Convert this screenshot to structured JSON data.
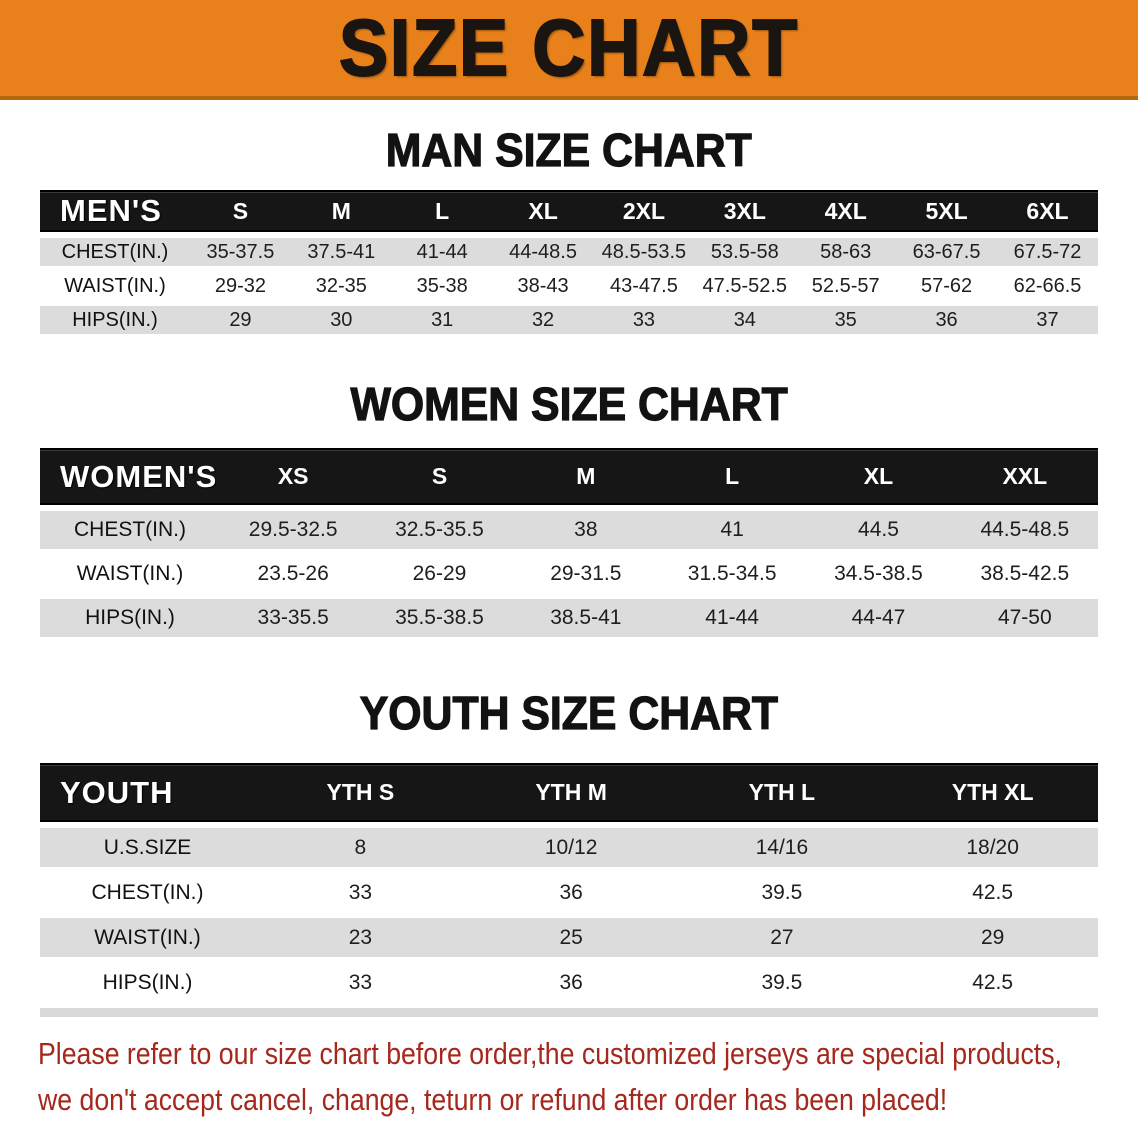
{
  "banner": {
    "title": "SIZE CHART"
  },
  "colors": {
    "banner_bg": "#E8811B",
    "banner_text": "#1A1510",
    "header_bar": "#161616",
    "header_text": "#FFFFFF",
    "row_stripe": "#DCDCDC",
    "row_text": "#1E1E1E",
    "notice_red": "#A5281D"
  },
  "sections": [
    {
      "heading": "MAN SIZE CHART",
      "table": {
        "header_label": "MEN'S",
        "columns": [
          "S",
          "M",
          "L",
          "XL",
          "2XL",
          "3XL",
          "4XL",
          "5XL",
          "6XL"
        ],
        "rows": [
          {
            "label": "CHEST(IN.)",
            "values": [
              "35-37.5",
              "37.5-41",
              "41-44",
              "44-48.5",
              "48.5-53.5",
              "53.5-58",
              "58-63",
              "63-67.5",
              "67.5-72"
            ]
          },
          {
            "label": "WAIST(IN.)",
            "values": [
              "29-32",
              "32-35",
              "35-38",
              "38-43",
              "43-47.5",
              "47.5-52.5",
              "52.5-57",
              "57-62",
              "62-66.5"
            ]
          },
          {
            "label": "HIPS(IN.)",
            "values": [
              "29",
              "30",
              "31",
              "32",
              "33",
              "34",
              "35",
              "36",
              "37"
            ]
          }
        ]
      }
    },
    {
      "heading": "WOMEN SIZE CHART",
      "table": {
        "header_label": "WOMEN'S",
        "columns": [
          "XS",
          "S",
          "M",
          "L",
          "XL",
          "XXL"
        ],
        "rows": [
          {
            "label": "CHEST(IN.)",
            "values": [
              "29.5-32.5",
              "32.5-35.5",
              "38",
              "41",
              "44.5",
              "44.5-48.5"
            ]
          },
          {
            "label": "WAIST(IN.)",
            "values": [
              "23.5-26",
              "26-29",
              "29-31.5",
              "31.5-34.5",
              "34.5-38.5",
              "38.5-42.5"
            ]
          },
          {
            "label": "HIPS(IN.)",
            "values": [
              "33-35.5",
              "35.5-38.5",
              "38.5-41",
              "41-44",
              "44-47",
              "47-50"
            ]
          }
        ]
      }
    },
    {
      "heading": "YOUTH SIZE CHART",
      "table": {
        "header_label": "YOUTH",
        "columns": [
          "YTH S",
          "YTH M",
          "YTH L",
          "YTH XL"
        ],
        "rows": [
          {
            "label": "U.S.SIZE",
            "values": [
              "8",
              "10/12",
              "14/16",
              "18/20"
            ]
          },
          {
            "label": "CHEST(IN.)",
            "values": [
              "33",
              "36",
              "39.5",
              "42.5"
            ]
          },
          {
            "label": "WAIST(IN.)",
            "values": [
              "23",
              "25",
              "27",
              "29"
            ]
          },
          {
            "label": "HIPS(IN.)",
            "values": [
              "33",
              "36",
              "39.5",
              "42.5"
            ]
          }
        ]
      }
    }
  ],
  "footer": {
    "line1": "Please refer to our size chart before order,the customized jerseys are special products,",
    "line2": "we don't accept cancel, change, teturn or refund after order has been placed!"
  },
  "first_column_widths": [
    150,
    180,
    215
  ]
}
